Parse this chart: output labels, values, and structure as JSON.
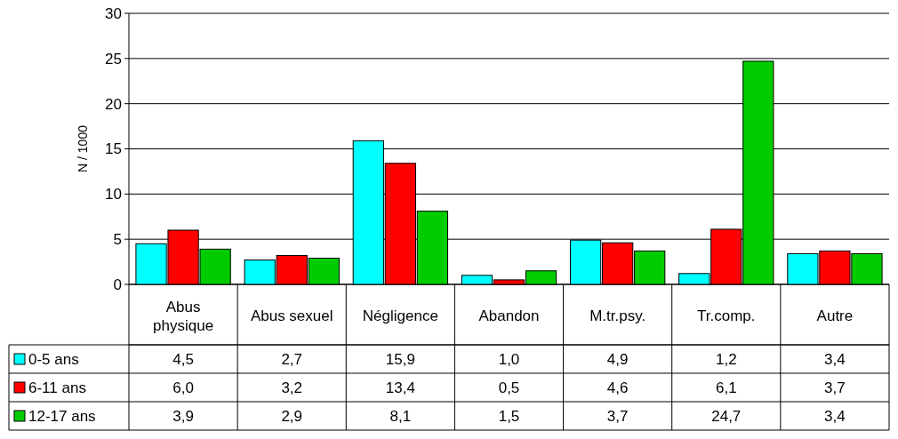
{
  "chart_data": {
    "type": "bar",
    "ylabel": "N / 1000",
    "categories": [
      "Abus physique",
      "Abus sexuel",
      "Négligence",
      "Abandon",
      "M.tr.psy.",
      "Tr.comp.",
      "Autre"
    ],
    "series": [
      {
        "name": "0-5 ans",
        "color": "#00ffff",
        "values": [
          4.5,
          2.7,
          15.9,
          1.0,
          4.9,
          1.2,
          3.4
        ],
        "value_labels": [
          "4,5",
          "2,7",
          "15,9",
          "1,0",
          "4,9",
          "1,2",
          "3,4"
        ]
      },
      {
        "name": "6-11 ans",
        "color": "#ff0000",
        "values": [
          6.0,
          3.2,
          13.4,
          0.5,
          4.6,
          6.1,
          3.7
        ],
        "value_labels": [
          "6,0",
          "3,2",
          "13,4",
          "0,5",
          "4,6",
          "6,1",
          "3,7"
        ]
      },
      {
        "name": "12-17 ans",
        "color": "#00cc00",
        "values": [
          3.9,
          2.9,
          8.1,
          1.5,
          3.7,
          24.7,
          3.4
        ],
        "value_labels": [
          "3,9",
          "2,9",
          "8,1",
          "1,5",
          "3,7",
          "24,7",
          "3,4"
        ]
      }
    ],
    "ylim": [
      0,
      30
    ],
    "yticks": [
      0,
      5,
      10,
      15,
      20,
      25,
      30
    ],
    "grid": "y",
    "legend": "bottom"
  }
}
